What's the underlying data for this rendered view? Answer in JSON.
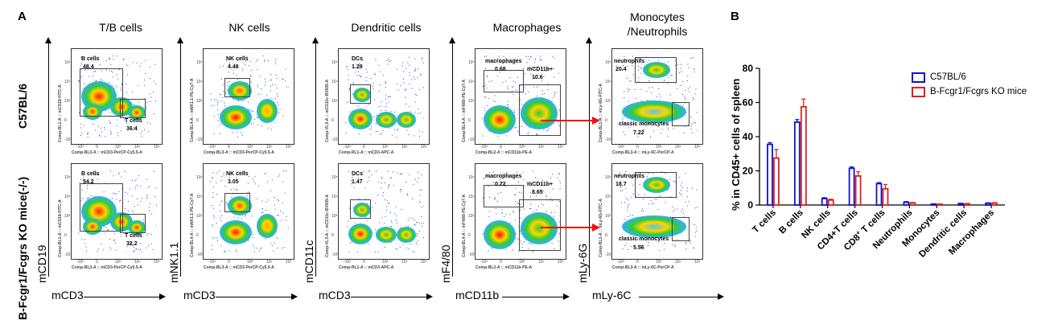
{
  "panel_a": {
    "letter": "A",
    "row_labels": [
      "C57BL/6",
      "B-Fcgr1/Fcgrs KO mice(-/-)"
    ],
    "columns": [
      {
        "title": "T/B cells",
        "y_marker": "mCD19",
        "x_marker": "mCD3",
        "y_param": "Comp-BL1-A :: mCD19-FITC-A",
        "x_param": "Comp-BL3-A :: mCD3-PerCP-Cy5.5-A",
        "gates": [
          {
            "name": "B cells",
            "wt": "48.4",
            "ko": "54.2"
          },
          {
            "name": "T cells",
            "wt": "36.4",
            "ko": "32.2"
          }
        ]
      },
      {
        "title": "NK cells",
        "y_marker": "mNK1.1",
        "x_marker": "mCD3",
        "y_param": "Comp-BL4-A :: mNK1.1-PE-Cy7-A",
        "x_param": "Comp-BL3-A :: mCD3-PerCP-Cy5.5-A",
        "gates": [
          {
            "name": "NK cells",
            "wt": "4.48",
            "ko": "3.05"
          }
        ]
      },
      {
        "title": "Dendritic cells",
        "y_marker": "mCD11c",
        "x_marker": "mCD3",
        "y_param": "Comp-VL3-A :: mCD11c-BV605-A",
        "x_param": "Comp-RL1-A :: mCD3-APC-A",
        "gates": [
          {
            "name": "DCs",
            "wt": "1.29",
            "ko": "1.47"
          }
        ]
      },
      {
        "title": "Macrophages",
        "y_marker": "mF4/80",
        "x_marker": "mCD11b",
        "y_param": "Comp-BL4-A :: mF4/80-PE-Cy7-A",
        "x_param": "Comp-BL2-A :: mCD11b-PE-A",
        "gates": [
          {
            "name": "macrophages",
            "wt": "0.68",
            "ko": "0.72"
          },
          {
            "name": "mCD11b+",
            "wt": "10.6",
            "ko": "8.65"
          }
        ]
      },
      {
        "title": "Monocytes /Neutrophils",
        "title_lines": [
          "Monocytes",
          "/Neutrophils"
        ],
        "y_marker": "mLy-6G",
        "x_marker": "mLy-6C",
        "y_param": "Comp-BL1-A :: mLy-6G-FITC-A",
        "x_param": "Comp-BL3-A :: mLy-6C-PerCP-A",
        "gates": [
          {
            "name": "neutrophils",
            "wt": "20.4",
            "ko": "18.7"
          },
          {
            "name": "classic monocytes",
            "wt": "7.22",
            "ko": "5.56"
          }
        ]
      }
    ],
    "ticks": [
      "-10³",
      "0",
      "10³",
      "10⁴",
      "10⁵"
    ],
    "arrow_color": "#ee1111"
  },
  "panel_b": {
    "letter": "B",
    "chart_data": {
      "type": "bar",
      "ylabel": "% in CD45+ cells of spleen",
      "ylim": [
        0,
        80
      ],
      "yticks": [
        "0",
        "20",
        "40",
        "60",
        "80"
      ],
      "categories": [
        "T cells",
        "B cells",
        "NK cells",
        "CD4+T cells",
        "CD8+ T cells",
        "Neutrophils",
        "Monocytes",
        "Dendritic cells",
        "Macrophages"
      ],
      "category_labels": [
        {
          "main": "T cells"
        },
        {
          "main": "B cells"
        },
        {
          "main": "NK cells"
        },
        {
          "main": "CD4+T cells"
        },
        {
          "main": "CD8",
          "sup": "+",
          "rest": " T cells"
        },
        {
          "main": "Neutrophils"
        },
        {
          "main": "Monocytes"
        },
        {
          "main": "Dendritic cells"
        },
        {
          "main": "Macrophages"
        }
      ],
      "series": [
        {
          "name": "C57BL/6",
          "color": "#1010d0",
          "values": [
            35.5,
            48.5,
            3.8,
            21.5,
            12.5,
            1.6,
            0.5,
            0.8,
            1.0
          ],
          "errors": [
            1.0,
            1.5,
            0.5,
            0.8,
            0.6,
            0.4,
            0.2,
            0.2,
            0.3
          ]
        },
        {
          "name": "B-Fcgr1/Fcgrs KO mice",
          "color": "#dd2020",
          "values": [
            27.5,
            57.5,
            2.9,
            17.0,
            9.5,
            1.2,
            0.4,
            0.7,
            1.1
          ],
          "errors": [
            5.0,
            4.5,
            0.5,
            2.5,
            2.5,
            0.3,
            0.2,
            0.2,
            0.3
          ]
        }
      ],
      "legend_position": "top-right"
    }
  }
}
